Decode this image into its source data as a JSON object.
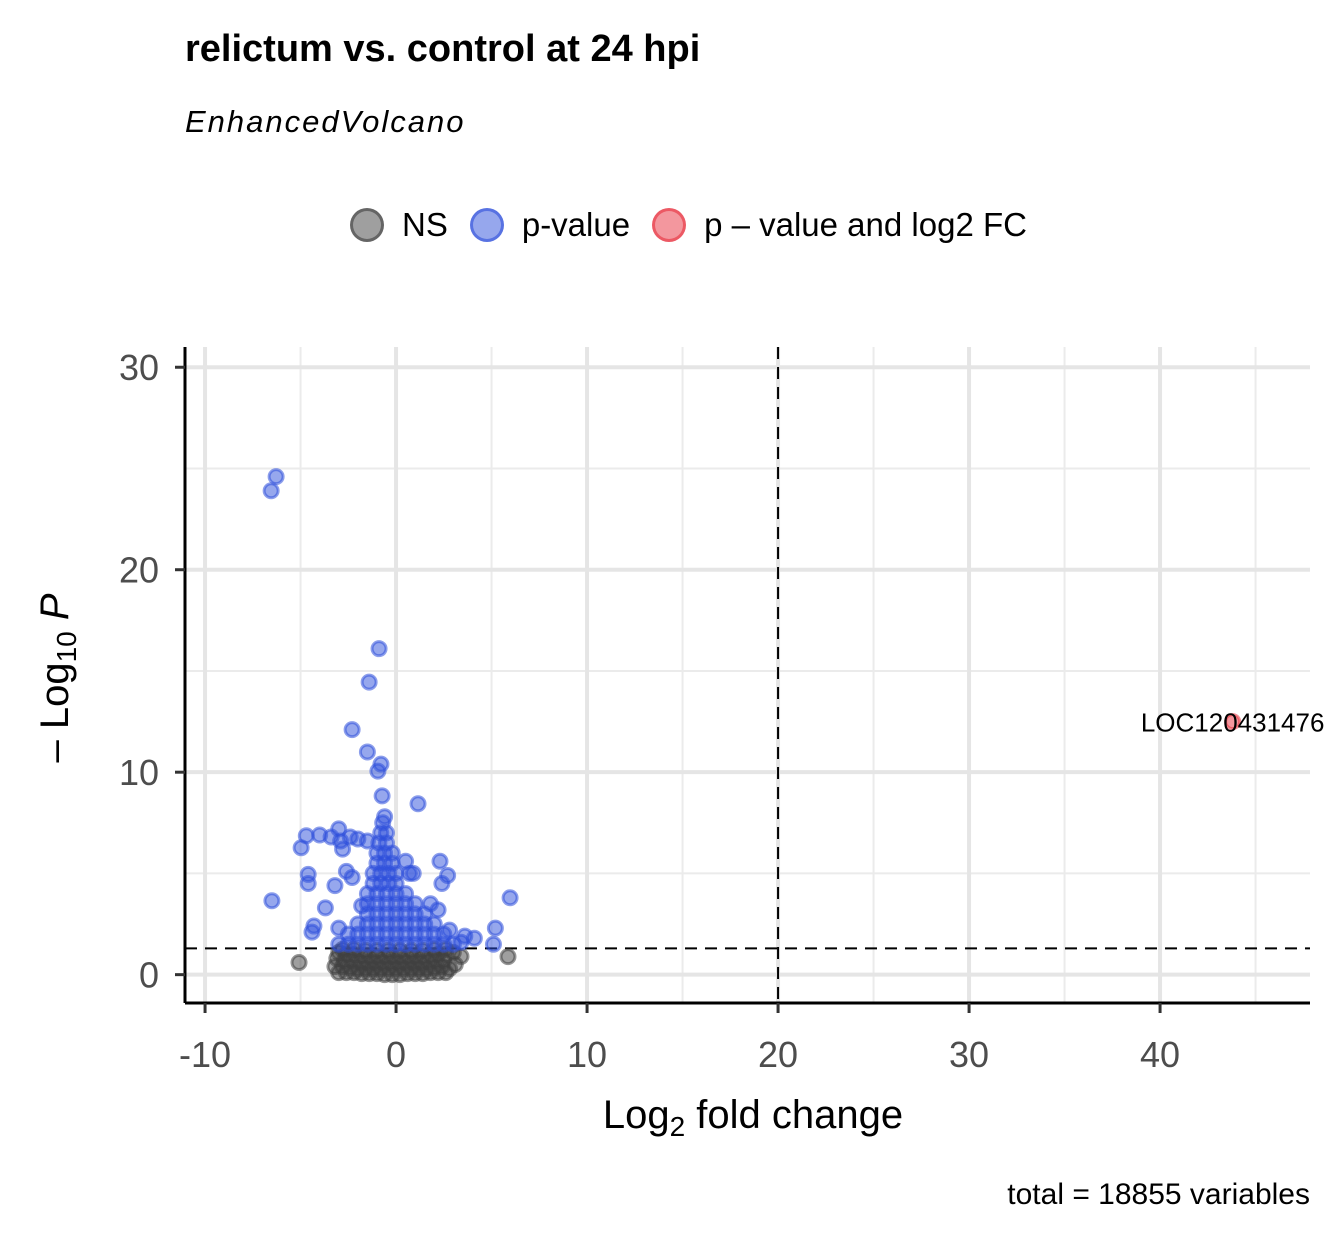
{
  "chart_data": {
    "type": "scatter",
    "title": "relictum vs. control at 24 hpi",
    "subtitle": "EnhancedVolcano",
    "xlabel": "Log2 fold change",
    "ylabel": "-Log10 P",
    "xlim": [
      -11.05,
      47.85
    ],
    "ylim": [
      -1.4,
      31.0
    ],
    "xticks": [
      -10,
      0,
      10,
      20,
      30,
      40
    ],
    "yticks": [
      0,
      10,
      20,
      30
    ],
    "grid": true,
    "cutoffs": {
      "pvalue_line_y": 1.3,
      "fc_line_x": 20
    },
    "legend_position": "top",
    "legend": [
      {
        "label": "NS",
        "color": "#404040"
      },
      {
        "label": "p-value",
        "color": "#2E4FDB"
      },
      {
        "label": "p – value and log2 FC",
        "color": "#E8303D"
      }
    ],
    "caption": "total = 18855 variables",
    "annotations": [
      {
        "label": "LOC120431476",
        "x": 43.8,
        "y": 12.5
      }
    ],
    "series": [
      {
        "name": "NS",
        "color": "#404040",
        "points": [
          [
            -5.08,
            0.6
          ],
          [
            5.86,
            0.89
          ],
          [
            -3,
            0.1
          ],
          [
            -2.6,
            0.1
          ],
          [
            -2.2,
            0.1
          ],
          [
            -1.8,
            0.05
          ],
          [
            -1.4,
            0.05
          ],
          [
            -1,
            0.05
          ],
          [
            -0.6,
            0
          ],
          [
            -0.2,
            0
          ],
          [
            0.2,
            0
          ],
          [
            0.6,
            0.05
          ],
          [
            1,
            0.05
          ],
          [
            1.4,
            0.05
          ],
          [
            1.8,
            0.1
          ],
          [
            2.2,
            0.1
          ],
          [
            2.6,
            0.1
          ],
          [
            2.8,
            0.3
          ],
          [
            -3.2,
            0.4
          ],
          [
            -2.8,
            0.4
          ],
          [
            -2.4,
            0.35
          ],
          [
            -2,
            0.3
          ],
          [
            -1.6,
            0.3
          ],
          [
            -1.2,
            0.3
          ],
          [
            -0.8,
            0.3
          ],
          [
            -0.4,
            0.3
          ],
          [
            0,
            0.3
          ],
          [
            0.4,
            0.3
          ],
          [
            0.8,
            0.3
          ],
          [
            1.2,
            0.3
          ],
          [
            1.6,
            0.3
          ],
          [
            2,
            0.35
          ],
          [
            2.4,
            0.4
          ],
          [
            3.1,
            0.5
          ],
          [
            -3.1,
            0.8
          ],
          [
            -2.7,
            0.7
          ],
          [
            -2.3,
            0.7
          ],
          [
            -1.9,
            0.6
          ],
          [
            -1.5,
            0.6
          ],
          [
            -1.1,
            0.6
          ],
          [
            -0.7,
            0.6
          ],
          [
            -0.3,
            0.6
          ],
          [
            0.1,
            0.6
          ],
          [
            0.5,
            0.6
          ],
          [
            0.9,
            0.6
          ],
          [
            1.3,
            0.6
          ],
          [
            1.7,
            0.65
          ],
          [
            2.1,
            0.7
          ],
          [
            2.5,
            0.7
          ],
          [
            3.4,
            0.9
          ],
          [
            -3,
            1.1
          ],
          [
            -2.6,
            1
          ],
          [
            -2.2,
            1
          ],
          [
            -1.8,
            0.95
          ],
          [
            -1.4,
            0.9
          ],
          [
            -1,
            0.9
          ],
          [
            -0.6,
            0.9
          ],
          [
            -0.2,
            0.9
          ],
          [
            0.2,
            0.9
          ],
          [
            0.6,
            0.9
          ],
          [
            1,
            0.9
          ],
          [
            1.4,
            0.9
          ],
          [
            1.8,
            0.95
          ],
          [
            2.2,
            1
          ],
          [
            2.6,
            1
          ],
          [
            3,
            1.1
          ],
          [
            -2.8,
            1.25
          ],
          [
            -2.2,
            1.25
          ],
          [
            -1.6,
            1.2
          ],
          [
            -1,
            1.2
          ],
          [
            -0.4,
            1.2
          ],
          [
            0.2,
            1.2
          ],
          [
            0.8,
            1.2
          ],
          [
            1.4,
            1.2
          ],
          [
            2,
            1.25
          ],
          [
            2.6,
            1.25
          ]
        ]
      },
      {
        "name": "p-value",
        "color": "#2E4FDB",
        "points": [
          [
            -6.28,
            24.6
          ],
          [
            -6.54,
            23.9
          ],
          [
            -0.89,
            16.1
          ],
          [
            -1.41,
            14.45
          ],
          [
            -2.3,
            12.1
          ],
          [
            -1.5,
            11.0
          ],
          [
            -0.79,
            10.4
          ],
          [
            -0.95,
            10.05
          ],
          [
            -0.73,
            8.83
          ],
          [
            1.15,
            8.44
          ],
          [
            -6.5,
            3.65
          ],
          [
            5.97,
            3.8
          ],
          [
            5.2,
            2.3
          ],
          [
            5.1,
            1.5
          ],
          [
            -4.7,
            6.86
          ],
          [
            -4.97,
            6.27
          ],
          [
            -4.6,
            4.95
          ],
          [
            -4.6,
            4.5
          ],
          [
            -4.0,
            6.9
          ],
          [
            -3.7,
            3.3
          ],
          [
            -4.3,
            2.4
          ],
          [
            -4.4,
            2.1
          ],
          [
            -3.0,
            7.2
          ],
          [
            2.3,
            5.6
          ],
          [
            2.4,
            4.5
          ],
          [
            2.7,
            4.9
          ],
          [
            0.5,
            5.6
          ],
          [
            0.7,
            5.0
          ],
          [
            0.9,
            5.0
          ],
          [
            3.6,
            1.9
          ],
          [
            4.1,
            1.8
          ],
          [
            2.8,
            2.2
          ],
          [
            3.4,
            1.6
          ],
          [
            -2.4,
            6.8
          ],
          [
            -2.0,
            6.7
          ],
          [
            -1.5,
            6.6
          ],
          [
            -2.8,
            6.2
          ],
          [
            -2.6,
            5.1
          ],
          [
            -3.2,
            4.4
          ],
          [
            -2.3,
            4.8
          ],
          [
            -1.8,
            3.4
          ],
          [
            -3.0,
            2.3
          ],
          [
            1.8,
            3.5
          ],
          [
            2.2,
            3.2
          ],
          [
            -2.9,
            6.6
          ],
          [
            -3.4,
            6.8
          ],
          [
            -3,
            1.5
          ],
          [
            -2.5,
            1.5
          ],
          [
            -2,
            1.5
          ],
          [
            -1.5,
            1.5
          ],
          [
            -1,
            1.5
          ],
          [
            -0.5,
            1.5
          ],
          [
            0,
            1.5
          ],
          [
            0.5,
            1.5
          ],
          [
            1,
            1.5
          ],
          [
            1.5,
            1.5
          ],
          [
            2,
            1.5
          ],
          [
            2.5,
            1.5
          ],
          [
            3,
            1.5
          ],
          [
            -2.5,
            2
          ],
          [
            -2,
            2
          ],
          [
            -1.5,
            2
          ],
          [
            -1,
            2
          ],
          [
            -0.5,
            2
          ],
          [
            0,
            2
          ],
          [
            0.5,
            2
          ],
          [
            1,
            2
          ],
          [
            1.5,
            2
          ],
          [
            2,
            2
          ],
          [
            2.5,
            2
          ],
          [
            -2,
            2.5
          ],
          [
            -1.5,
            2.5
          ],
          [
            -1,
            2.5
          ],
          [
            -0.5,
            2.5
          ],
          [
            0,
            2.5
          ],
          [
            0.5,
            2.5
          ],
          [
            1,
            2.5
          ],
          [
            1.5,
            2.5
          ],
          [
            2,
            2.5
          ],
          [
            -1.5,
            3
          ],
          [
            -1,
            3
          ],
          [
            -0.5,
            3
          ],
          [
            0,
            3
          ],
          [
            0.5,
            3
          ],
          [
            1,
            3
          ],
          [
            1.5,
            3
          ],
          [
            -1.5,
            3.5
          ],
          [
            -1,
            3.5
          ],
          [
            -0.5,
            3.5
          ],
          [
            0,
            3.5
          ],
          [
            0.5,
            3.5
          ],
          [
            1,
            3.5
          ],
          [
            -1.5,
            4
          ],
          [
            -1,
            4
          ],
          [
            -0.5,
            4
          ],
          [
            0,
            4
          ],
          [
            0.5,
            4
          ],
          [
            -1.2,
            4.5
          ],
          [
            -0.8,
            4.5
          ],
          [
            -0.4,
            4.5
          ],
          [
            0,
            4.5
          ],
          [
            -1.2,
            5
          ],
          [
            -0.8,
            5
          ],
          [
            -0.4,
            5
          ],
          [
            0,
            5
          ],
          [
            -1,
            5.5
          ],
          [
            -0.6,
            5.5
          ],
          [
            -0.2,
            5.5
          ],
          [
            -1,
            6
          ],
          [
            -0.6,
            6
          ],
          [
            -0.2,
            6
          ],
          [
            -0.9,
            6.5
          ],
          [
            -0.5,
            6.5
          ],
          [
            -0.8,
            7
          ],
          [
            -0.5,
            7
          ],
          [
            -0.7,
            7.5
          ],
          [
            -0.6,
            7.8
          ]
        ]
      },
      {
        "name": "p – value and log2 FC",
        "color": "#E8303D",
        "points": [
          [
            43.8,
            12.5
          ]
        ]
      }
    ]
  }
}
